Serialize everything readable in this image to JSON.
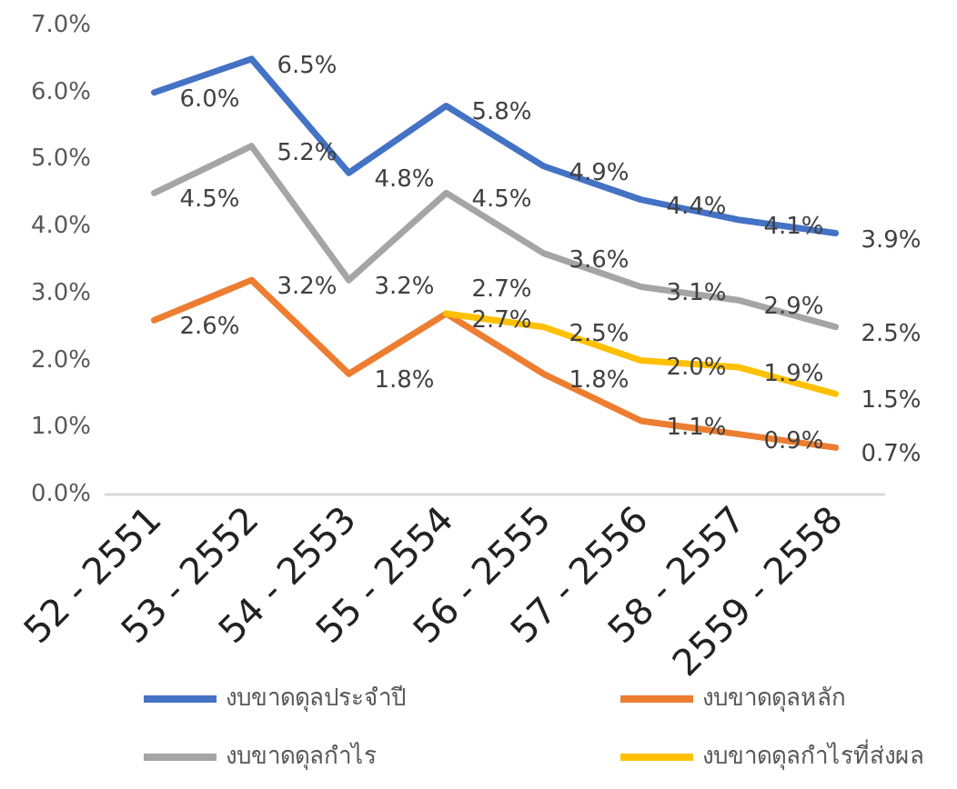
{
  "chart_data": {
    "type": "line",
    "categories": [
      "52 - 2551",
      "53 - 2552",
      "54 - 2553",
      "55 - 2554",
      "56 - 2555",
      "57 - 2556",
      "58 - 2557",
      "2559 - 2558"
    ],
    "series": [
      {
        "name": "งบขาดดุลประจำปี",
        "color": "#4472c4",
        "values": [
          6.0,
          6.5,
          4.8,
          5.8,
          4.9,
          4.4,
          4.1,
          3.9
        ],
        "value_labels": [
          "6.0%",
          "6.5%",
          "4.8%",
          "5.8%",
          "4.9%",
          "4.4%",
          "4.1%",
          "3.9%"
        ]
      },
      {
        "name": "งบขาดดุลหลัก",
        "color": "#ed7d31",
        "values": [
          2.6,
          3.2,
          1.8,
          2.7,
          1.8,
          1.1,
          0.9,
          0.7
        ],
        "value_labels": [
          "2.6%",
          "3.2%",
          "1.8%",
          "2.7%",
          "1.8%",
          "1.1%",
          "0.9%",
          "0.7%"
        ]
      },
      {
        "name": "งบขาดดุลกำไร",
        "color": "#a5a5a5",
        "values": [
          4.5,
          5.2,
          3.2,
          4.5,
          3.6,
          3.1,
          2.9,
          2.5
        ],
        "value_labels": [
          "4.5%",
          "5.2%",
          "3.2%",
          "4.5%",
          "3.6%",
          "3.1%",
          "2.9%",
          "2.5%"
        ]
      },
      {
        "name": "งบขาดดุลกำไรที่ส่งผล",
        "color": "#ffc000",
        "values": [
          null,
          null,
          null,
          2.7,
          2.5,
          2.0,
          1.9,
          1.5
        ],
        "value_labels": [
          null,
          null,
          null,
          "2.7%",
          "2.5%",
          "2.0%",
          "1.9%",
          "1.5%"
        ]
      }
    ],
    "ylim": [
      0,
      7
    ],
    "yticks": [
      {
        "value": 0,
        "label": "0.0%"
      },
      {
        "value": 1,
        "label": "1.0%"
      },
      {
        "value": 2,
        "label": "2.0%"
      },
      {
        "value": 3,
        "label": "3.0%"
      },
      {
        "value": 4,
        "label": "4.0%"
      },
      {
        "value": 5,
        "label": "5.0%"
      },
      {
        "value": 6,
        "label": "6.0%"
      },
      {
        "value": 7,
        "label": "7.0%"
      }
    ],
    "grid": false,
    "legend": "bottom",
    "marker": "none",
    "line_style": "solid"
  }
}
